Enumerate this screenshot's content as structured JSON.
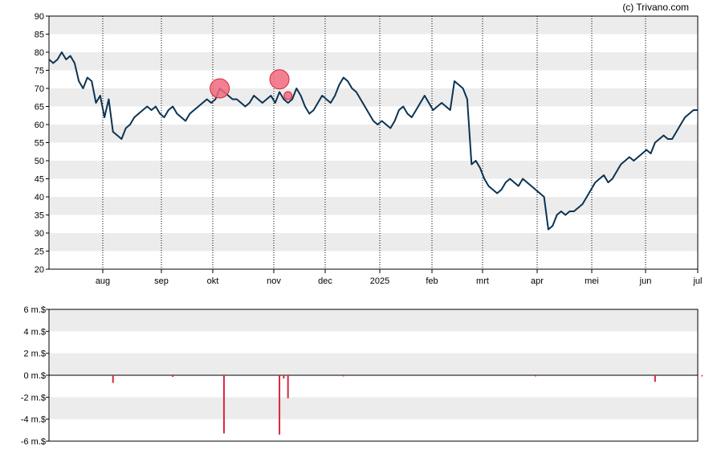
{
  "credit": "(c) Trivano.com",
  "colors": {
    "line": "#0b3352",
    "band": "#ececec",
    "bar": "#d8283e",
    "marker": "#f06a7c",
    "marker_stroke": "#d8283e",
    "axis": "#000000"
  },
  "chart_data": [
    {
      "type": "line",
      "title": "",
      "xlabel": "",
      "ylabel": "",
      "ylim": [
        20,
        90
      ],
      "y_ticks": [
        "20",
        "25",
        "30",
        "35",
        "40",
        "45",
        "50",
        "55",
        "60",
        "65",
        "70",
        "75",
        "80",
        "85",
        "90"
      ],
      "x_ticks": [
        "aug",
        "sep",
        "okt",
        "nov",
        "dec",
        "2025",
        "feb",
        "mrt",
        "apr",
        "mei",
        "jun",
        "jul"
      ],
      "grid": "alternating horizontal bands, dotted vertical lines at month starts",
      "series": [
        {
          "values": [
            78,
            77,
            78,
            80,
            78,
            79,
            77,
            72,
            70,
            73,
            72,
            66,
            68,
            62,
            67,
            58,
            57,
            56,
            59,
            60,
            62,
            63,
            64,
            65,
            64,
            65,
            63,
            62,
            64,
            65,
            63,
            62,
            61,
            63,
            64,
            65,
            66,
            67,
            66,
            67,
            70,
            69,
            68,
            67,
            67,
            66,
            65,
            66,
            68,
            67,
            66,
            67,
            68,
            66,
            69,
            67,
            66,
            67,
            70,
            68,
            65,
            63,
            64,
            66,
            68,
            67,
            66,
            68,
            71,
            73,
            72,
            70,
            69,
            67,
            65,
            63,
            61,
            60,
            61,
            60,
            59,
            61,
            64,
            65,
            63,
            62,
            64,
            66,
            68,
            66,
            64,
            65,
            66,
            65,
            64,
            72,
            71,
            70,
            67,
            49,
            50,
            48,
            45,
            43,
            42,
            41,
            42,
            44,
            45,
            44,
            43,
            45,
            44,
            43,
            42,
            41,
            40,
            31,
            32,
            35,
            36,
            35,
            36,
            36,
            37,
            38,
            40,
            42,
            44,
            45,
            46,
            44,
            45,
            47,
            49,
            50,
            51,
            50,
            51,
            52,
            53,
            52,
            55,
            56,
            57,
            56,
            56,
            58,
            60,
            62,
            63,
            64,
            64
          ]
        }
      ],
      "markers": [
        {
          "index": 40,
          "value": 70,
          "size": "large"
        },
        {
          "index": 54,
          "value": 72.5,
          "size": "large"
        },
        {
          "index": 56,
          "value": 68,
          "size": "small"
        }
      ]
    },
    {
      "type": "bar",
      "title": "",
      "xlabel": "",
      "ylabel": "",
      "ylim": [
        -6,
        6
      ],
      "unit": "m.$",
      "y_ticks": [
        "6 m.$",
        "4 m.$",
        "2 m.$",
        "0 m.$",
        "-2 m.$",
        "-4 m.$",
        "-6 m.$"
      ],
      "values": [
        {
          "index": 15,
          "value": -0.7
        },
        {
          "index": 29,
          "value": -0.15
        },
        {
          "index": 41,
          "value": -5.3
        },
        {
          "index": 54,
          "value": -5.4
        },
        {
          "index": 55,
          "value": -0.3
        },
        {
          "index": 56,
          "value": -2.1
        },
        {
          "index": 69,
          "value": -0.1
        },
        {
          "index": 114,
          "value": -0.1
        },
        {
          "index": 142,
          "value": -0.6
        },
        {
          "index": 153,
          "value": -0.1
        }
      ]
    }
  ]
}
